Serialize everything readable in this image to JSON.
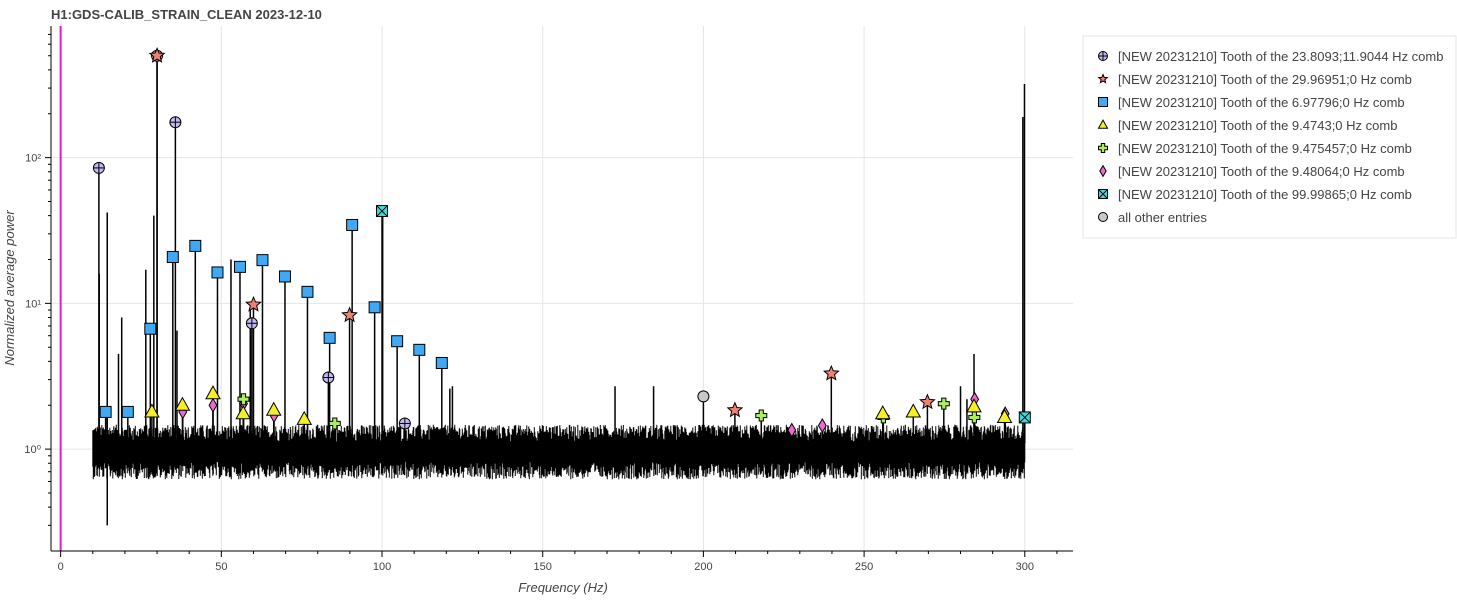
{
  "chart_data": {
    "type": "line",
    "title": "H1:GDS-CALIB_STRAIN_CLEAN 2023-12-10",
    "xlabel": "Frequency (Hz)",
    "ylabel": "Normalized average power",
    "xlim": [
      -3,
      315
    ],
    "ylim": [
      0.2,
      800
    ],
    "yscale": "log",
    "grid": true,
    "x_ticks": [
      0,
      50,
      100,
      150,
      200,
      250,
      300
    ],
    "y_ticks": [
      {
        "value": 1,
        "label": "10⁰"
      },
      {
        "value": 10,
        "label": "10¹"
      },
      {
        "value": 100,
        "label": "10²"
      }
    ],
    "vline": {
      "x": 0,
      "color": "#e21bc5"
    },
    "spectrum": {
      "x_start": 10,
      "x_end": 300,
      "noise_level": 1.0,
      "min_dip": [
        14.5,
        0.3
      ],
      "extra_lines": [
        [
          12.0,
          16
        ],
        [
          14.5,
          42
        ],
        [
          18,
          4.5
        ],
        [
          19,
          8
        ],
        [
          26.5,
          17
        ],
        [
          29,
          40
        ],
        [
          36.2,
          6.5
        ],
        [
          53,
          20
        ],
        [
          59,
          9
        ],
        [
          100.2,
          42
        ],
        [
          121.9,
          2.7
        ],
        [
          121.1,
          2.6
        ],
        [
          172.5,
          2.7
        ],
        [
          184.5,
          2.7
        ],
        [
          280,
          2.7
        ],
        [
          282,
          2.2
        ],
        [
          284.2,
          4.5
        ],
        [
          299.4,
          190
        ],
        [
          299.9,
          320
        ]
      ]
    },
    "series": [
      {
        "name": "[NEW 20231210] Tooth of the 23.8093;11.9044 Hz comb",
        "marker": "circle_cross",
        "color": "#c0b8f0",
        "size": 11,
        "points": [
          [
            11.9,
            85
          ],
          [
            35.7,
            175
          ],
          [
            59.5,
            7.3
          ],
          [
            83.3,
            3.1
          ],
          [
            107.1,
            1.5
          ]
        ]
      },
      {
        "name": "[NEW 20231210] Tooth of the 29.96951;0 Hz comb",
        "marker": "star",
        "color": "#f08070",
        "size": 15,
        "points": [
          [
            30.0,
            500
          ],
          [
            60.0,
            9.8
          ],
          [
            89.9,
            8.3
          ],
          [
            209.8,
            1.85
          ],
          [
            239.8,
            3.3
          ],
          [
            269.7,
            2.1
          ]
        ]
      },
      {
        "name": "[NEW 20231210] Tooth of the 6.97796;0 Hz comb",
        "marker": "square",
        "color": "#3fa9f5",
        "size": 11,
        "points": [
          [
            14.0,
            1.8
          ],
          [
            20.9,
            1.8
          ],
          [
            27.9,
            6.7
          ],
          [
            34.9,
            20.8
          ],
          [
            41.9,
            24.8
          ],
          [
            48.8,
            16.3
          ],
          [
            55.8,
            17.8
          ],
          [
            62.8,
            19.8
          ],
          [
            69.8,
            15.3
          ],
          [
            76.8,
            12.0
          ],
          [
            83.7,
            5.8
          ],
          [
            90.7,
            34.5
          ],
          [
            97.7,
            9.4
          ],
          [
            104.7,
            5.5
          ],
          [
            111.6,
            4.8
          ],
          [
            118.6,
            3.9
          ]
        ]
      },
      {
        "name": "[NEW 20231210] Tooth of the 9.4743;0 Hz comb",
        "marker": "triangle",
        "color": "#f5f025",
        "size": 14,
        "points": [
          [
            28.4,
            1.8
          ],
          [
            37.9,
            2.0
          ],
          [
            47.4,
            2.4
          ],
          [
            56.8,
            1.75
          ],
          [
            66.3,
            1.85
          ],
          [
            75.8,
            1.6
          ],
          [
            255.8,
            1.75
          ],
          [
            265.3,
            1.8
          ],
          [
            284.2,
            1.95
          ],
          [
            293.7,
            1.65
          ]
        ]
      },
      {
        "name": "[NEW 20231210] Tooth of the 9.475457;0 Hz comb",
        "marker": "plus",
        "color": "#a8f060",
        "size": 11,
        "points": [
          [
            56.9,
            2.2
          ],
          [
            85.3,
            1.5
          ],
          [
            218.0,
            1.7
          ],
          [
            256.0,
            1.65
          ],
          [
            274.8,
            2.05
          ],
          [
            284.3,
            1.65
          ]
        ]
      },
      {
        "name": "[NEW 20231210] Tooth of the 9.48064;0 Hz comb",
        "marker": "diamond",
        "color": "#ee6ad0",
        "size": 11,
        "points": [
          [
            38.0,
            1.8
          ],
          [
            47.4,
            2.0
          ],
          [
            56.9,
            2.05
          ],
          [
            66.4,
            1.7
          ],
          [
            227.5,
            1.35
          ],
          [
            237.0,
            1.45
          ],
          [
            284.4,
            2.2
          ],
          [
            293.9,
            1.75
          ]
        ]
      },
      {
        "name": "[NEW 20231210] Tooth of the 99.99865;0 Hz comb",
        "marker": "square_x",
        "color": "#3fd9d9",
        "size": 11,
        "points": [
          [
            100.0,
            43
          ],
          [
            300.0,
            1.65
          ]
        ]
      },
      {
        "name": "all other entries",
        "marker": "circle",
        "color": "#c8c8c8",
        "size": 11,
        "points": [
          [
            30.0,
            500
          ],
          [
            200.0,
            2.3
          ]
        ]
      }
    ],
    "legend_position": "right"
  }
}
